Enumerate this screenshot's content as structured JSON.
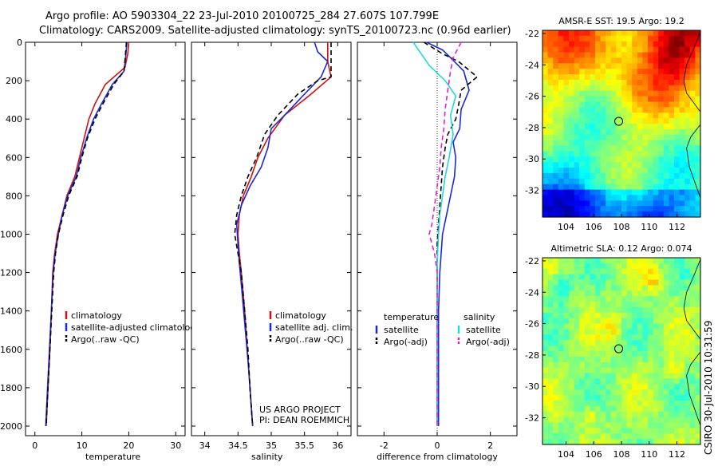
{
  "header": {
    "line1": "Argo profile: AO 5903304_22 23-Jul-2010 20100725_284 27.607S 107.799E",
    "line2": "Climatology: CARS2009. Satellite-adjusted climatology: synTS_20100723.nc (0.96d earlier)"
  },
  "side_label": "CSIRO  30-Jul-2010 10:31:59",
  "colors": {
    "climatology": "#d01010",
    "satellite": "#1a2ad8",
    "argo": "#000000",
    "cyan": "#20d8e0",
    "magenta": "#e020e0"
  },
  "chart_data": [
    {
      "type": "line",
      "id": "temperature",
      "xlabel": "temperature",
      "ylabel": "",
      "xlim": [
        -2,
        32
      ],
      "ylim": [
        2050,
        0
      ],
      "xticks": [
        0,
        10,
        20,
        30
      ],
      "yticks": [
        0,
        200,
        400,
        600,
        800,
        1000,
        1200,
        1400,
        1600,
        1800,
        2000
      ],
      "legend": [
        "climatology",
        "satellite-adjusted climatology",
        "Argo(..raw -QC)"
      ],
      "series": [
        {
          "name": "climatology",
          "color": "#d01010",
          "dash": "",
          "points": [
            [
              20,
              0
            ],
            [
              19.8,
              60
            ],
            [
              19.2,
              130
            ],
            [
              15,
              220
            ],
            [
              12.8,
              320
            ],
            [
              11.5,
              400
            ],
            [
              10.5,
              500
            ],
            [
              9.5,
              600
            ],
            [
              8.5,
              700
            ],
            [
              6.8,
              800
            ],
            [
              5.8,
              900
            ],
            [
              4.8,
              1000
            ],
            [
              4.2,
              1100
            ],
            [
              3.8,
              1200
            ],
            [
              3.5,
              1400
            ],
            [
              3.2,
              1600
            ],
            [
              2.8,
              1800
            ],
            [
              2.4,
              2000
            ]
          ]
        },
        {
          "name": "satellite-adjusted climatology",
          "color": "#1a2ad8",
          "dash": "",
          "points": [
            [
              19.6,
              0
            ],
            [
              19.4,
              60
            ],
            [
              19.0,
              150
            ],
            [
              16.5,
              220
            ],
            [
              14.2,
              320
            ],
            [
              12.5,
              400
            ],
            [
              11.0,
              500
            ],
            [
              9.8,
              600
            ],
            [
              8.8,
              700
            ],
            [
              7.0,
              800
            ],
            [
              5.8,
              900
            ],
            [
              5.0,
              1000
            ],
            [
              4.3,
              1100
            ],
            [
              3.9,
              1200
            ],
            [
              3.5,
              1400
            ],
            [
              3.1,
              1600
            ],
            [
              2.7,
              1800
            ],
            [
              2.3,
              2000
            ]
          ]
        },
        {
          "name": "Argo(..raw -QC)",
          "color": "#000000",
          "dash": "6,4",
          "points": [
            [
              19.5,
              0
            ],
            [
              19.3,
              60
            ],
            [
              19.0,
              150
            ],
            [
              16.8,
              220
            ],
            [
              14.5,
              320
            ],
            [
              12.8,
              400
            ],
            [
              11.2,
              500
            ],
            [
              10.0,
              600
            ],
            [
              9.0,
              700
            ],
            [
              7.2,
              800
            ],
            [
              6.0,
              900
            ],
            [
              5.0,
              1000
            ],
            [
              4.4,
              1100
            ],
            [
              4.0,
              1200
            ],
            [
              3.6,
              1400
            ],
            [
              3.2,
              1600
            ],
            [
              2.8,
              1800
            ],
            [
              2.4,
              2000
            ]
          ]
        }
      ]
    },
    {
      "type": "line",
      "id": "salinity",
      "xlabel": "salinity",
      "ylabel": "",
      "xlim": [
        33.8,
        36.2
      ],
      "ylim": [
        2050,
        0
      ],
      "xticks": [
        34,
        34.5,
        35,
        35.5,
        36
      ],
      "yticks": [],
      "legend": [
        "climatology",
        "satellite adj. clim.",
        "Argo(..raw -QC)"
      ],
      "annotation": [
        "US ARGO PROJECT",
        "PI: DEAN ROEMMICH"
      ],
      "series": [
        {
          "name": "climatology",
          "color": "#d01010",
          "dash": "",
          "points": [
            [
              35.85,
              0
            ],
            [
              35.85,
              100
            ],
            [
              35.9,
              180
            ],
            [
              35.6,
              270
            ],
            [
              35.2,
              380
            ],
            [
              34.95,
              500
            ],
            [
              34.8,
              600
            ],
            [
              34.7,
              700
            ],
            [
              34.58,
              800
            ],
            [
              34.52,
              900
            ],
            [
              34.5,
              1000
            ],
            [
              34.52,
              1100
            ],
            [
              34.55,
              1200
            ],
            [
              34.6,
              1400
            ],
            [
              34.64,
              1600
            ],
            [
              34.68,
              1800
            ],
            [
              34.72,
              2000
            ]
          ]
        },
        {
          "name": "satellite adj. clim.",
          "color": "#1a2ad8",
          "dash": "",
          "points": [
            [
              35.65,
              0
            ],
            [
              35.7,
              50
            ],
            [
              35.85,
              100
            ],
            [
              35.75,
              180
            ],
            [
              35.5,
              270
            ],
            [
              35.2,
              380
            ],
            [
              35.0,
              450
            ],
            [
              34.95,
              550
            ],
            [
              34.85,
              650
            ],
            [
              34.68,
              750
            ],
            [
              34.55,
              850
            ],
            [
              34.48,
              950
            ],
            [
              34.5,
              1050
            ],
            [
              34.52,
              1150
            ],
            [
              34.56,
              1300
            ],
            [
              34.61,
              1500
            ],
            [
              34.66,
              1700
            ],
            [
              34.7,
              1900
            ],
            [
              34.72,
              2000
            ]
          ]
        },
        {
          "name": "Argo(..raw -QC)",
          "color": "#000000",
          "dash": "6,4",
          "points": [
            [
              35.9,
              0
            ],
            [
              35.9,
              100
            ],
            [
              35.9,
              180
            ],
            [
              35.7,
              200
            ],
            [
              35.4,
              270
            ],
            [
              35.1,
              380
            ],
            [
              34.9,
              480
            ],
            [
              34.78,
              600
            ],
            [
              34.65,
              700
            ],
            [
              34.55,
              800
            ],
            [
              34.48,
              900
            ],
            [
              34.45,
              1000
            ],
            [
              34.5,
              1100
            ],
            [
              34.55,
              1200
            ],
            [
              34.6,
              1400
            ],
            [
              34.65,
              1600
            ],
            [
              34.68,
              1800
            ],
            [
              34.72,
              2000
            ]
          ]
        }
      ]
    },
    {
      "type": "line",
      "id": "difference",
      "xlabel": "difference from climatology",
      "ylabel": "",
      "xlim": [
        -3,
        3
      ],
      "ylim": [
        2050,
        0
      ],
      "xticks": [
        -2,
        0,
        2
      ],
      "yticks": [],
      "legend_titles": [
        "temperature",
        "salinity"
      ],
      "legend": [
        "satellite",
        "Argo(-adj)",
        "satellite",
        "Argo(-adj)"
      ],
      "series": [
        {
          "name": "temperature satellite",
          "color": "#1a2ad8",
          "dash": "",
          "points": [
            [
              -0.4,
              0
            ],
            [
              0.2,
              40
            ],
            [
              0.5,
              80
            ],
            [
              1.0,
              150
            ],
            [
              1.2,
              250
            ],
            [
              0.9,
              350
            ],
            [
              0.85,
              450
            ],
            [
              0.6,
              520
            ],
            [
              0.7,
              600
            ],
            [
              0.65,
              700
            ],
            [
              0.5,
              800
            ],
            [
              0.35,
              900
            ],
            [
              0.2,
              1000
            ],
            [
              0.15,
              1100
            ],
            [
              0.1,
              1200
            ],
            [
              0.05,
              1400
            ],
            [
              0.05,
              1600
            ],
            [
              0.05,
              1800
            ],
            [
              0.05,
              2000
            ]
          ]
        },
        {
          "name": "temperature Argo(-adj)",
          "color": "#000000",
          "dash": "6,4",
          "points": [
            [
              -0.5,
              0
            ],
            [
              0.2,
              60
            ],
            [
              0.8,
              100
            ],
            [
              1.5,
              180
            ],
            [
              0.9,
              250
            ],
            [
              0.8,
              330
            ],
            [
              0.7,
              400
            ],
            [
              0.4,
              480
            ],
            [
              0.3,
              550
            ],
            [
              0.2,
              650
            ],
            [
              0.15,
              750
            ],
            [
              0.1,
              850
            ],
            [
              0.05,
              950
            ],
            [
              0.0,
              1050
            ],
            [
              0.0,
              1200
            ],
            [
              0.0,
              1400
            ],
            [
              0.0,
              1600
            ],
            [
              0.0,
              1800
            ],
            [
              0.0,
              2000
            ]
          ]
        },
        {
          "name": "salinity satellite",
          "color": "#20d8e0",
          "dash": "",
          "points": [
            [
              -0.9,
              0
            ],
            [
              -0.6,
              60
            ],
            [
              -0.3,
              120
            ],
            [
              0.3,
              200
            ],
            [
              0.7,
              280
            ],
            [
              0.5,
              380
            ],
            [
              0.6,
              480
            ],
            [
              0.45,
              600
            ],
            [
              0.3,
              700
            ],
            [
              0.2,
              800
            ],
            [
              0.1,
              900
            ],
            [
              0.05,
              1000
            ],
            [
              0.0,
              1150
            ],
            [
              0.0,
              1300
            ],
            [
              0.0,
              1500
            ],
            [
              0.0,
              1700
            ],
            [
              0.0,
              2000
            ]
          ]
        },
        {
          "name": "salinity Argo(-adj)",
          "color": "#e020e0",
          "dash": "6,4",
          "points": [
            [
              0.9,
              0
            ],
            [
              0.6,
              80
            ],
            [
              0.5,
              150
            ],
            [
              0.4,
              250
            ],
            [
              0.3,
              350
            ],
            [
              0.25,
              450
            ],
            [
              0.15,
              550
            ],
            [
              0.1,
              650
            ],
            [
              0.0,
              750
            ],
            [
              -0.1,
              850
            ],
            [
              -0.2,
              950
            ],
            [
              -0.3,
              1000
            ],
            [
              -0.1,
              1100
            ],
            [
              0.0,
              1200
            ],
            [
              0.0,
              1400
            ],
            [
              0.0,
              1600
            ],
            [
              0.0,
              1800
            ],
            [
              0.0,
              2000
            ]
          ]
        }
      ]
    },
    {
      "type": "heatmap",
      "id": "sst_map",
      "title": "AMSR-E SST: 19.5 Argo: 19.2",
      "xlim": [
        102.3,
        113.7
      ],
      "ylim": [
        -33.7,
        -21.8
      ],
      "xticks": [
        104,
        106,
        108,
        110,
        112
      ],
      "yticks": [
        -22,
        -24,
        -26,
        -28,
        -30,
        -32
      ],
      "marker": [
        107.8,
        -27.6
      ],
      "colormap": "jet"
    },
    {
      "type": "heatmap",
      "id": "sla_map",
      "title": "Altimetric SLA: 0.12 Argo: 0.074",
      "xlim": [
        102.3,
        113.7
      ],
      "ylim": [
        -33.7,
        -21.8
      ],
      "xticks": [
        104,
        106,
        108,
        110,
        112
      ],
      "yticks": [
        -22,
        -24,
        -26,
        -28,
        -30,
        -32
      ],
      "marker": [
        107.8,
        -27.6
      ],
      "colormap": "jet"
    }
  ]
}
